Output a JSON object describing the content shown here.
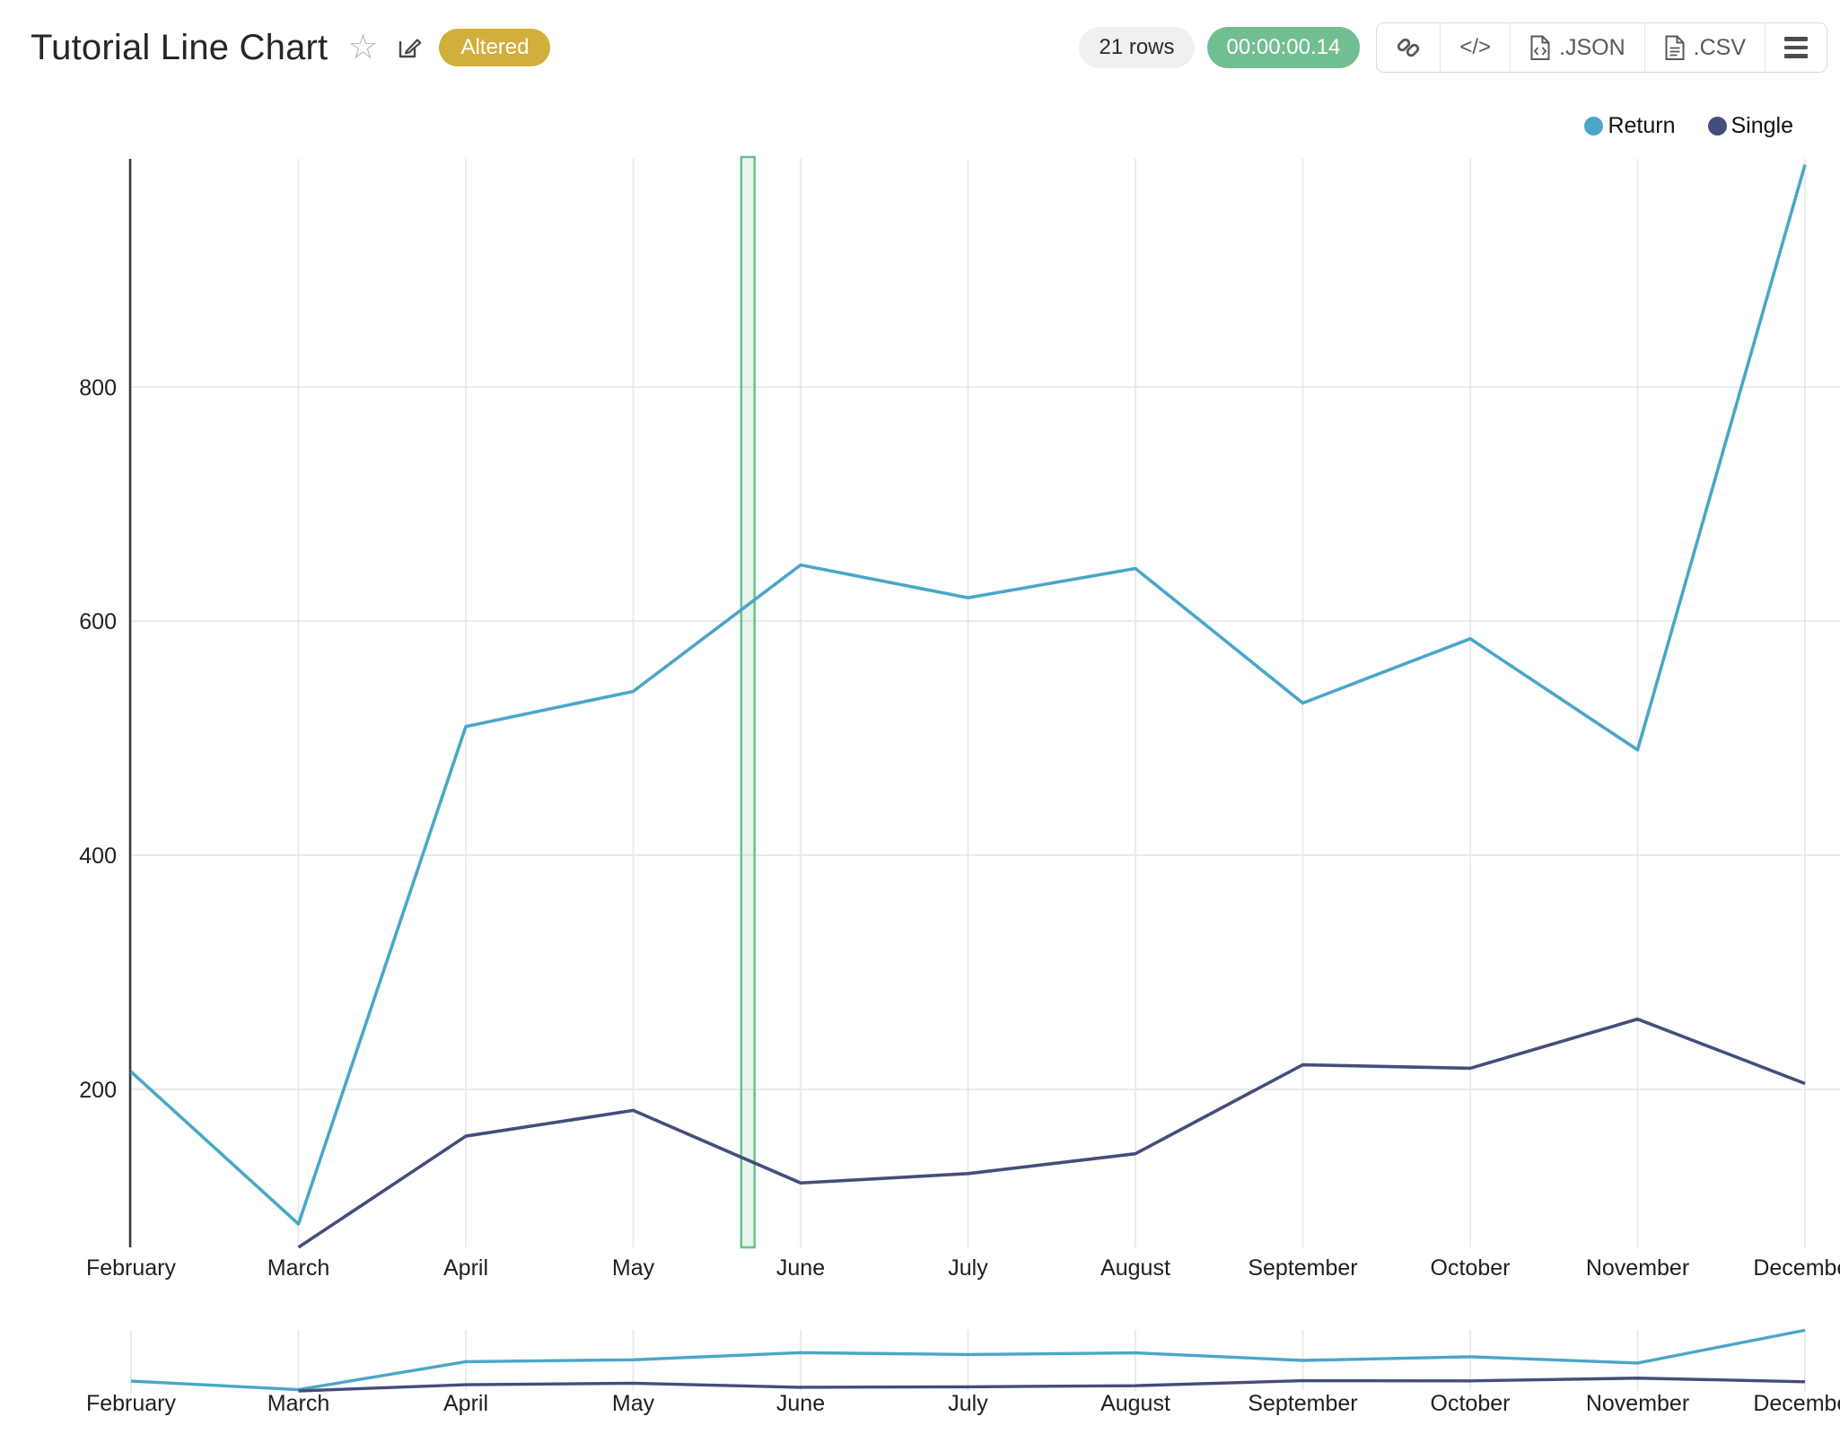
{
  "header": {
    "title": "Tutorial Line Chart",
    "status_badge": "Altered",
    "rows_badge": "21 rows",
    "runtime_badge": "00:00:00.14",
    "export_buttons": {
      "json": ".JSON",
      "csv": ".CSV"
    },
    "icons": {
      "favorite_glyph": "☆",
      "embed_glyph": "</>"
    }
  },
  "theme": {
    "badge_gold": "#d2ae3c",
    "runtime_green": "#71bf90",
    "toolbar_icon_gray": "#595959",
    "grid_gray": "#e6e6e6",
    "axis_dark": "#3a3a3a",
    "tick_text": "#1f1f1f"
  },
  "chart_data": {
    "type": "line",
    "title": "",
    "xlabel": "",
    "ylabel": "",
    "categories": [
      "February",
      "March",
      "April",
      "May",
      "June",
      "July",
      "August",
      "September",
      "October",
      "November",
      "December"
    ],
    "series": [
      {
        "name": "Return",
        "color": "#4ba6c8",
        "values": [
          215,
          85,
          510,
          540,
          648,
          620,
          645,
          530,
          585,
          490,
          990
        ]
      },
      {
        "name": "Single",
        "color": "#444e7c",
        "values": [
          null,
          65,
          160,
          182,
          120,
          128,
          145,
          221,
          218,
          260,
          205
        ]
      }
    ],
    "yticks": [
      200,
      400,
      600,
      800
    ],
    "ylim": [
      65,
      995
    ],
    "grid": true,
    "legend_position": "top-right",
    "selection_band": {
      "start_index": 3.645,
      "end_index": 3.725,
      "fill": "rgba(111,191,138,0.16)",
      "border": "#6fbf8a"
    },
    "range_slider": true
  }
}
